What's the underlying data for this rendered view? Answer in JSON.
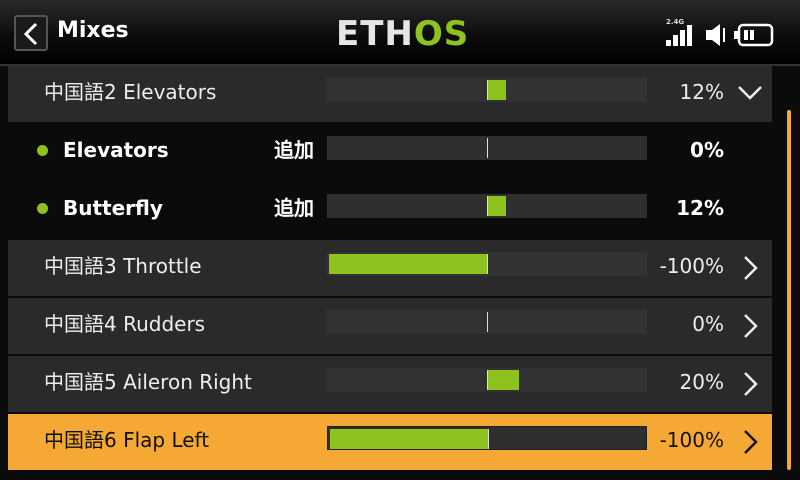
{
  "header": {
    "title": "Mixes",
    "logo_main": "ETH",
    "logo_accent": "OS",
    "radio_band": "2.4G"
  },
  "mixes": [
    {
      "name": "中国語2 Elevators",
      "operation": "",
      "value": "12%",
      "fraction": 0.12,
      "type": "group",
      "chevron": "chevron-down",
      "selected": false
    },
    {
      "name": "Elevators",
      "operation": "追加",
      "value": "0%",
      "fraction": 0.0,
      "type": "sub",
      "chevron": "",
      "selected": false
    },
    {
      "name": "Butterfly",
      "operation": "追加",
      "value": "12%",
      "fraction": 0.12,
      "type": "sub",
      "chevron": "",
      "selected": false
    },
    {
      "name": "中国語3 Throttle",
      "operation": "",
      "value": "-100%",
      "fraction": -1.0,
      "type": "mix",
      "chevron": "chevron-right",
      "selected": false
    },
    {
      "name": "中国語4 Rudders",
      "operation": "",
      "value": "0%",
      "fraction": 0.0,
      "type": "mix",
      "chevron": "chevron-right",
      "selected": false
    },
    {
      "name": "中国語5 Aileron Right",
      "operation": "",
      "value": "20%",
      "fraction": 0.2,
      "type": "mix",
      "chevron": "chevron-right",
      "selected": false
    },
    {
      "name": "中国語6 Flap Left",
      "operation": "",
      "value": "-100%",
      "fraction": -1.0,
      "type": "mix",
      "chevron": "chevron-right",
      "selected": true
    }
  ],
  "colors": {
    "accent": "#8dc21f",
    "highlight": "#f5a833",
    "row_bg": "#2a2a2a"
  }
}
